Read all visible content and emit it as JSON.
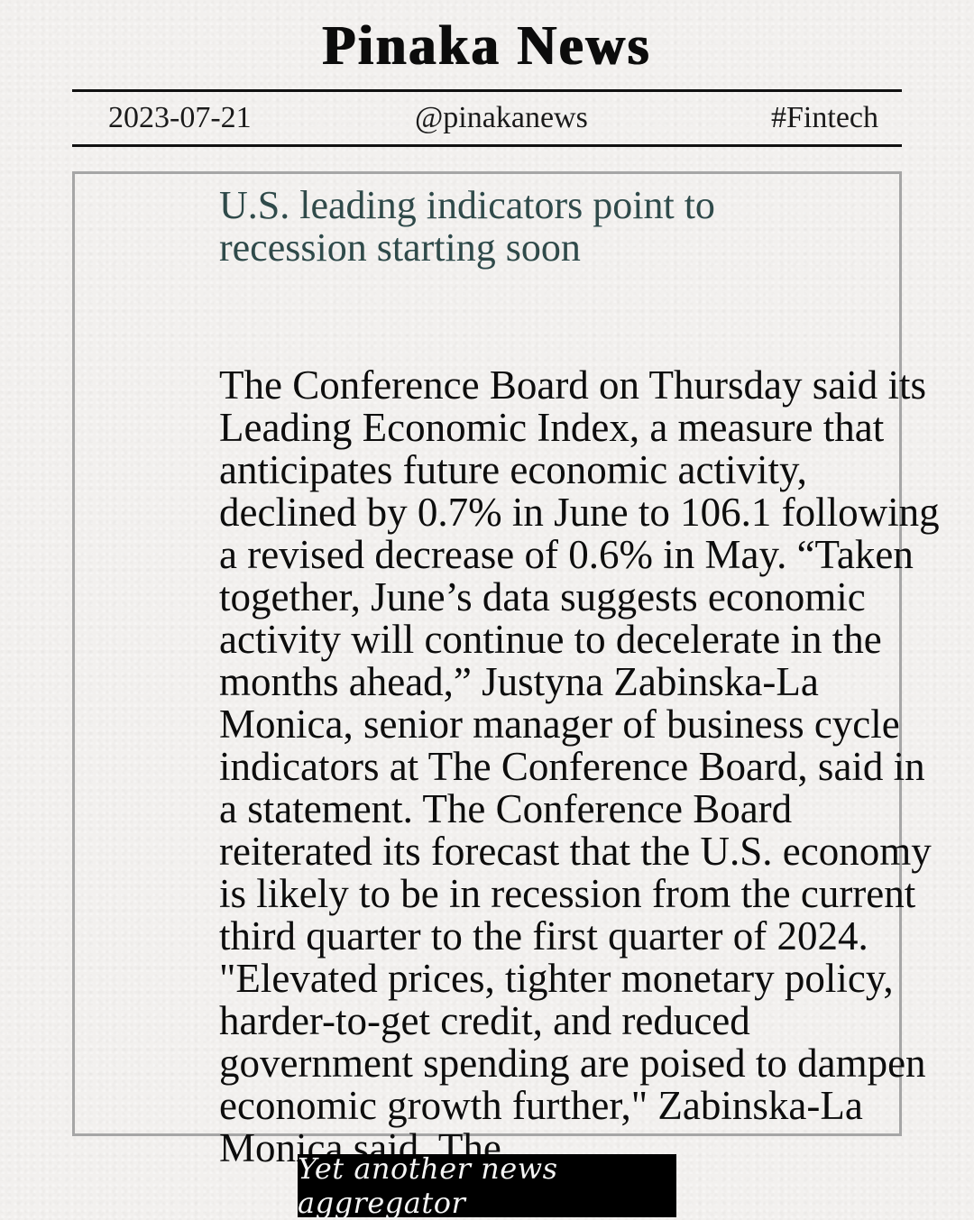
{
  "masthead": {
    "title": "Pinaka News"
  },
  "dateline": {
    "date": "2023-07-21",
    "handle": "@pinakanews",
    "tag": "#Fintech"
  },
  "article": {
    "headline": "U.S. leading indicators point to recession starting soon",
    "body": "The Conference Board on Thursday said its Leading Economic Index, a measure that anticipates future economic activity, declined by 0.7% in June to 106.1 following a revised decrease of 0.6% in May. “Taken together, June’s data suggests economic activity will continue to decelerate in the months ahead,” Justyna Zabinska-La Monica, senior manager of business cycle indicators at The Conference Board, said in a statement. The Conference Board reiterated its forecast that the U.S. economy is likely to be in recession from the current third quarter to the first quarter of 2024. \"Elevated prices, tighter monetary policy, harder-to-get credit, and reduced government spending are poised to dampen economic growth further,\" Zabinska-La Monica said. The"
  },
  "footer": {
    "banner": "Yet another news aggregator"
  }
}
